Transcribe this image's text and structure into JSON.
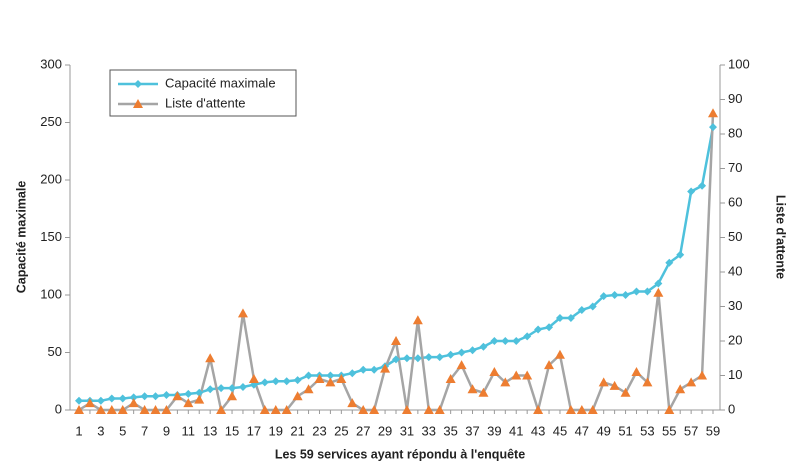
{
  "chart_data": {
    "type": "line",
    "categories": [
      1,
      null,
      3,
      null,
      5,
      null,
      7,
      null,
      9,
      null,
      11,
      null,
      13,
      null,
      15,
      null,
      17,
      null,
      19,
      null,
      21,
      null,
      23,
      null,
      25,
      null,
      27,
      null,
      29,
      null,
      31,
      null,
      33,
      null,
      35,
      null,
      37,
      null,
      39,
      null,
      41,
      null,
      43,
      null,
      45,
      null,
      47,
      null,
      49,
      null,
      51,
      null,
      53,
      null,
      55,
      null,
      57,
      null,
      59
    ],
    "xlabel": "Les 59 services ayant répondu à l'enquête",
    "ylabel": "Capacité maximale",
    "y2label": "Liste d'attente",
    "ylim": [
      0,
      300
    ],
    "yticks": [
      0,
      50,
      100,
      150,
      200,
      250,
      300
    ],
    "y2lim": [
      0,
      100
    ],
    "y2ticks": [
      0,
      10,
      20,
      30,
      40,
      50,
      60,
      70,
      80,
      90,
      100
    ],
    "legend": "upper left",
    "series": [
      {
        "name": "Capacité maximale",
        "color": "#4ec1dc",
        "marker": "diamond",
        "values": [
          8,
          8,
          8,
          10,
          10,
          11,
          12,
          12,
          13,
          13,
          14,
          15,
          18,
          19,
          19,
          20,
          22,
          24,
          25,
          25,
          26,
          30,
          30,
          30,
          30,
          32,
          35,
          35,
          38,
          44,
          45,
          45,
          46,
          46,
          48,
          50,
          52,
          55,
          60,
          60,
          60,
          64,
          70,
          72,
          80,
          80,
          87,
          90,
          99,
          100,
          100,
          103,
          103,
          110,
          128,
          135,
          190,
          195,
          246
        ]
      },
      {
        "name": "Liste d'attente",
        "color": "#a5a5a5",
        "marker_color": "#ed7d31",
        "marker": "triangle",
        "axis": "y2",
        "values": [
          0,
          2,
          0,
          0,
          0,
          2,
          0,
          0,
          0,
          4,
          2,
          3,
          15,
          0,
          4,
          28,
          9,
          0,
          0,
          0,
          4,
          6,
          9,
          8,
          9,
          2,
          0,
          0,
          12,
          20,
          0,
          26,
          0,
          0,
          9,
          13,
          6,
          5,
          11,
          8,
          10,
          10,
          0,
          13,
          16,
          0,
          0,
          0,
          8,
          7,
          5,
          11,
          8,
          34,
          0,
          6,
          8,
          10,
          86
        ]
      }
    ]
  }
}
